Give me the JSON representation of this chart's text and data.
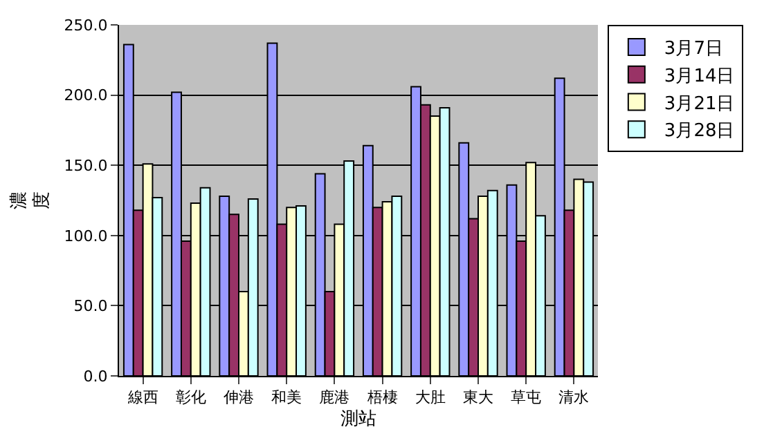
{
  "chart_data": {
    "type": "bar",
    "xlabel": "測站",
    "ylabel": "濃度",
    "categories": [
      "線西",
      "彰化",
      "伸港",
      "和美",
      "鹿港",
      "梧棲",
      "大肚",
      "東大",
      "草屯",
      "清水"
    ],
    "series": [
      {
        "name": "3月7日",
        "color": "#9999ff",
        "values": [
          236,
          202,
          128,
          237,
          144,
          164,
          206,
          166,
          136,
          212
        ]
      },
      {
        "name": "3月14日",
        "color": "#993366",
        "values": [
          118,
          96,
          115,
          108,
          60,
          120,
          193,
          112,
          96,
          118
        ]
      },
      {
        "name": "3月21日",
        "color": "#ffffcc",
        "values": [
          151,
          123,
          60,
          120,
          108,
          124,
          185,
          128,
          152,
          140
        ]
      },
      {
        "name": "3月28日",
        "color": "#ccffff",
        "values": [
          127,
          134,
          126,
          121,
          153,
          128,
          191,
          132,
          114,
          138
        ]
      }
    ],
    "ylim": [
      0,
      250
    ],
    "yticks": [
      {
        "value": 0,
        "label": "0.0"
      },
      {
        "value": 50,
        "label": "50.0"
      },
      {
        "value": 100,
        "label": "100.0"
      },
      {
        "value": 150,
        "label": "150.0"
      },
      {
        "value": 200,
        "label": "200.0"
      },
      {
        "value": 250,
        "label": "250.0"
      }
    ],
    "grid": "y",
    "legend": "top right"
  }
}
